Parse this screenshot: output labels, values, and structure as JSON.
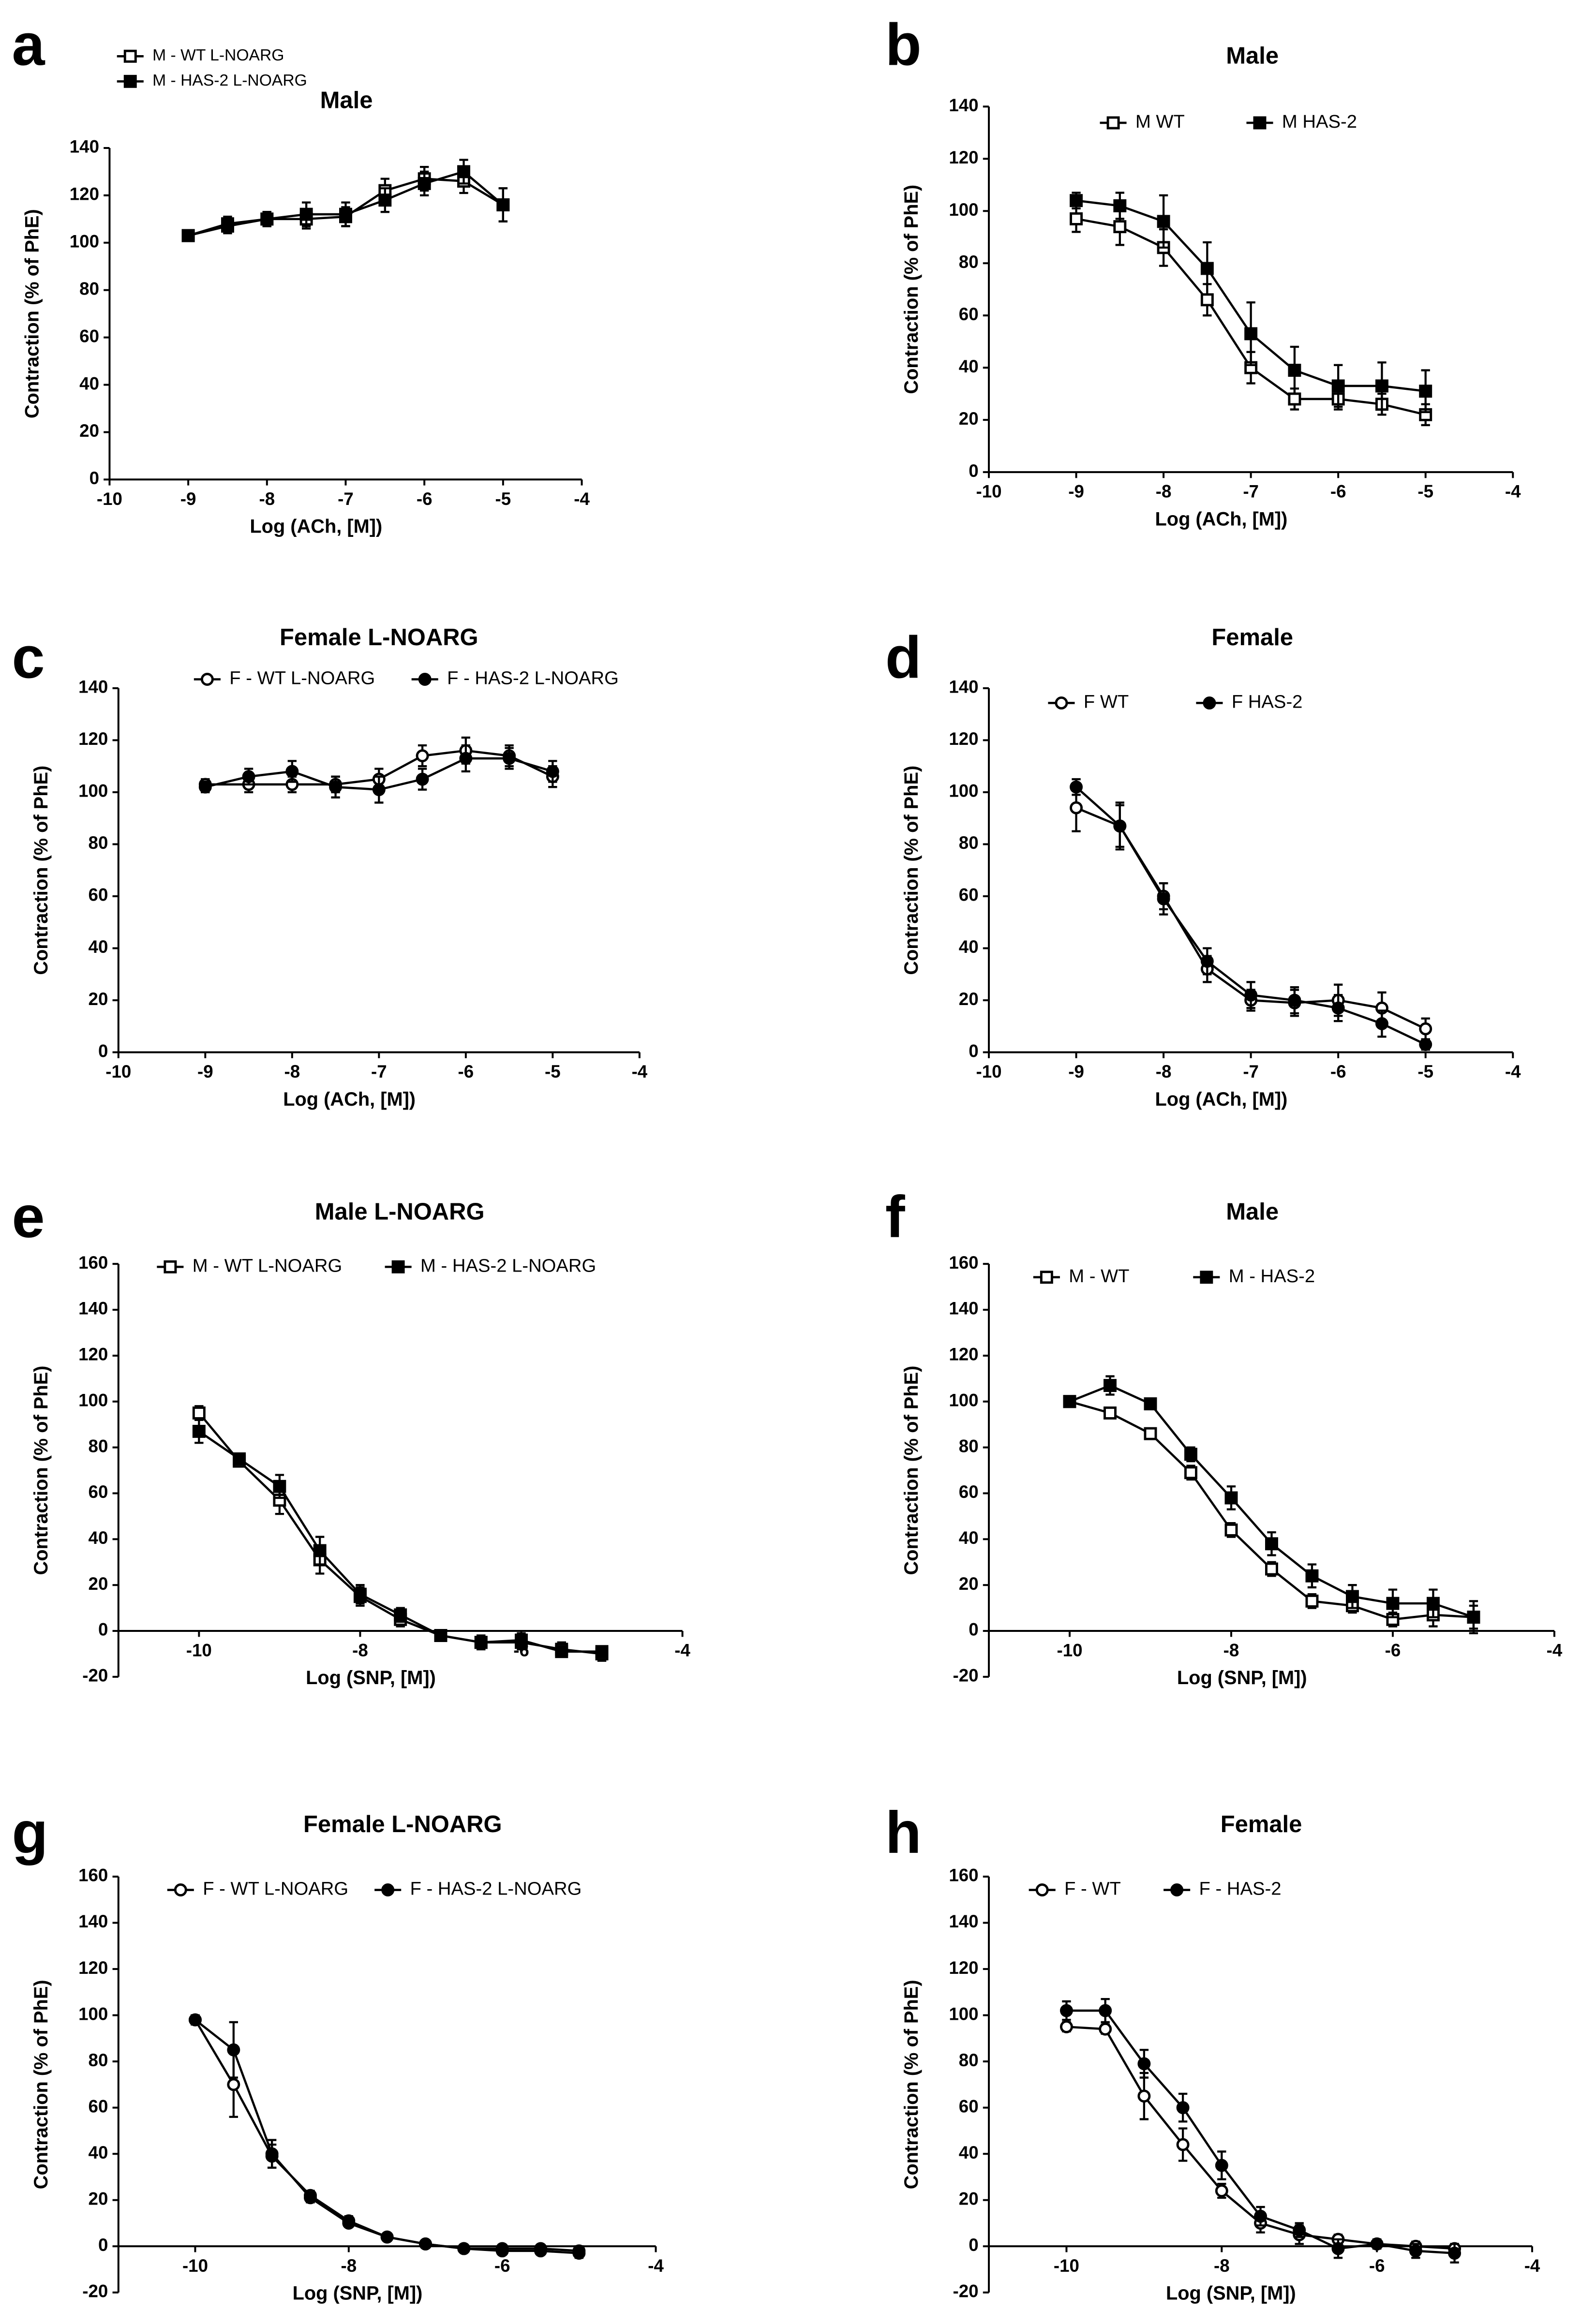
{
  "chart_data": [
    {
      "type": "line",
      "panel": "a",
      "title": "Male",
      "xlabel": "Log (ACh, [M])",
      "ylabel": "Contraction (% of PhE)",
      "x": [
        -9,
        -8.5,
        -8,
        -7.5,
        -7,
        -6.5,
        -6,
        -5.5,
        -5
      ],
      "series": [
        {
          "name": "M - WT L-NOARG",
          "marker": "square",
          "filled": false,
          "color": "#000000",
          "values": [
            103,
            107,
            110,
            110,
            111,
            122,
            127,
            126,
            116
          ],
          "errors": [
            2,
            3,
            3,
            4,
            4,
            5,
            5,
            5,
            7
          ]
        },
        {
          "name": "M - HAS-2 L-NOARG",
          "marker": "square",
          "filled": true,
          "color": "#000000",
          "values": [
            103,
            108,
            110,
            112,
            112,
            118,
            125,
            130,
            116
          ],
          "errors": [
            2,
            3,
            3,
            5,
            5,
            5,
            5,
            5,
            7
          ]
        }
      ],
      "xlim": [
        -10,
        -4
      ],
      "xticks": [
        -10,
        -9,
        -8,
        -7,
        -6,
        -5,
        -4
      ],
      "ylim": [
        0,
        140
      ],
      "yticks": [
        0,
        20,
        40,
        60,
        80,
        100,
        120,
        140
      ]
    },
    {
      "type": "line",
      "panel": "b",
      "title": "Male",
      "xlabel": "Log (ACh, [M])",
      "ylabel": "Contraction (% of PhE)",
      "x": [
        -9,
        -8.5,
        -8,
        -7.5,
        -7,
        -6.5,
        -6,
        -5.5,
        -5
      ],
      "series": [
        {
          "name": "M WT",
          "marker": "square",
          "filled": false,
          "color": "#000000",
          "values": [
            97,
            94,
            86,
            66,
            40,
            28,
            28,
            26,
            22
          ],
          "errors": [
            5,
            7,
            7,
            6,
            6,
            4,
            4,
            4,
            4
          ]
        },
        {
          "name": "M HAS-2",
          "marker": "square",
          "filled": true,
          "color": "#000000",
          "values": [
            104,
            102,
            96,
            78,
            53,
            39,
            33,
            33,
            31
          ],
          "errors": [
            3,
            5,
            10,
            10,
            12,
            9,
            8,
            9,
            8
          ]
        }
      ],
      "xlim": [
        -10,
        -4
      ],
      "xticks": [
        -10,
        -9,
        -8,
        -7,
        -6,
        -5,
        -4
      ],
      "ylim": [
        0,
        140
      ],
      "yticks": [
        0,
        20,
        40,
        60,
        80,
        100,
        120,
        140
      ]
    },
    {
      "type": "line",
      "panel": "c",
      "title": "Female L-NOARG",
      "xlabel": "Log (ACh, [M])",
      "ylabel": "Contraction (% of PhE)",
      "x": [
        -9,
        -8.5,
        -8,
        -7.5,
        -7,
        -6.5,
        -6,
        -5.5,
        -5
      ],
      "series": [
        {
          "name": "F - WT L-NOARG",
          "marker": "circle",
          "filled": false,
          "color": "#000000",
          "values": [
            103,
            103,
            103,
            103,
            105,
            114,
            116,
            114,
            106
          ],
          "errors": [
            2,
            3,
            3,
            3,
            4,
            4,
            5,
            4,
            4
          ]
        },
        {
          "name": "F - HAS-2 L-NOARG",
          "marker": "circle",
          "filled": true,
          "color": "#000000",
          "values": [
            102,
            106,
            108,
            102,
            101,
            105,
            113,
            113,
            108
          ],
          "errors": [
            2,
            3,
            4,
            4,
            5,
            4,
            5,
            4,
            4
          ]
        }
      ],
      "xlim": [
        -10,
        -4
      ],
      "xticks": [
        -10,
        -9,
        -8,
        -7,
        -6,
        -5,
        -4
      ],
      "ylim": [
        0,
        140
      ],
      "yticks": [
        0,
        20,
        40,
        60,
        80,
        100,
        120,
        140
      ]
    },
    {
      "type": "line",
      "panel": "d",
      "title": "Female",
      "xlabel": "Log (ACh, [M])",
      "ylabel": "Contraction (% of PhE)",
      "x": [
        -9,
        -8.5,
        -8,
        -7.5,
        -7,
        -6.5,
        -6,
        -5.5,
        -5
      ],
      "series": [
        {
          "name": "F WT",
          "marker": "circle",
          "filled": false,
          "color": "#000000",
          "values": [
            94,
            87,
            60,
            32,
            20,
            19,
            20,
            17,
            9
          ],
          "errors": [
            9,
            8,
            5,
            5,
            4,
            5,
            6,
            6,
            4
          ]
        },
        {
          "name": "F HAS-2",
          "marker": "circle",
          "filled": true,
          "color": "#000000",
          "values": [
            102,
            87,
            59,
            35,
            22,
            20,
            17,
            11,
            3
          ],
          "errors": [
            3,
            9,
            6,
            5,
            5,
            5,
            5,
            5,
            2
          ]
        }
      ],
      "xlim": [
        -10,
        -4
      ],
      "xticks": [
        -10,
        -9,
        -8,
        -7,
        -6,
        -5,
        -4
      ],
      "ylim": [
        0,
        140
      ],
      "yticks": [
        0,
        20,
        40,
        60,
        80,
        100,
        120,
        140
      ]
    },
    {
      "type": "line",
      "panel": "e",
      "title": "Male L-NOARG",
      "xlabel": "Log (SNP, [M])",
      "ylabel": "Contraction (% of PhE)",
      "x": [
        -10,
        -9.5,
        -9,
        -8.5,
        -8,
        -7.5,
        -7,
        -6.5,
        -6,
        -5.5,
        -5
      ],
      "series": [
        {
          "name": "M - WT L-NOARG",
          "marker": "square",
          "filled": false,
          "color": "#000000",
          "values": [
            95,
            74,
            57,
            31,
            15,
            5,
            -2,
            -5,
            -5,
            -8,
            -10
          ],
          "errors": [
            3,
            2,
            6,
            6,
            4,
            3,
            2,
            3,
            3,
            3,
            3
          ]
        },
        {
          "name": "M - HAS-2 L-NOARG",
          "marker": "square",
          "filled": true,
          "color": "#000000",
          "values": [
            87,
            75,
            63,
            35,
            16,
            7,
            -2,
            -5,
            -4,
            -9,
            -9
          ],
          "errors": [
            5,
            2,
            5,
            6,
            4,
            3,
            2,
            3,
            3,
            2,
            2
          ]
        }
      ],
      "xlim": [
        -11,
        -4
      ],
      "xticks": [
        -10,
        -8,
        -6,
        -4
      ],
      "ylim": [
        -20,
        160
      ],
      "yticks": [
        -20,
        0,
        20,
        40,
        60,
        80,
        100,
        120,
        140,
        160
      ]
    },
    {
      "type": "line",
      "panel": "f",
      "title": "Male",
      "xlabel": "Log (SNP, [M])",
      "ylabel": "Contraction (% of PhE)",
      "x": [
        -10,
        -9.5,
        -9,
        -8.5,
        -8,
        -7.5,
        -7,
        -6.5,
        -6,
        -5.5,
        -5
      ],
      "series": [
        {
          "name": "M - WT",
          "marker": "square",
          "filled": false,
          "color": "#000000",
          "values": [
            100,
            95,
            86,
            69,
            44,
            27,
            13,
            11,
            5,
            7,
            6
          ],
          "errors": [
            1,
            2,
            2,
            3,
            3,
            3,
            3,
            3,
            3,
            5,
            5
          ]
        },
        {
          "name": "M - HAS-2",
          "marker": "square",
          "filled": true,
          "color": "#000000",
          "values": [
            100,
            107,
            99,
            77,
            58,
            38,
            24,
            15,
            12,
            12,
            6
          ],
          "errors": [
            2,
            4,
            1,
            3,
            5,
            5,
            5,
            5,
            6,
            6,
            7
          ]
        }
      ],
      "xlim": [
        -11,
        -4
      ],
      "xticks": [
        -10,
        -8,
        -6,
        -4
      ],
      "ylim": [
        -20,
        160
      ],
      "yticks": [
        -20,
        0,
        20,
        40,
        60,
        80,
        100,
        120,
        140,
        160
      ]
    },
    {
      "type": "line",
      "panel": "g",
      "title": "Female L-NOARG",
      "xlabel": "Log (SNP, [M])",
      "ylabel": "Contraction (% of PhE)",
      "x": [
        -10,
        -9.5,
        -9,
        -8.5,
        -8,
        -7.5,
        -7,
        -6.5,
        -6,
        -5.5,
        -5
      ],
      "series": [
        {
          "name": "F - WT L-NOARG",
          "marker": "circle",
          "filled": false,
          "color": "#000000",
          "values": [
            98,
            70,
            39,
            22,
            11,
            4,
            1,
            -1,
            -2,
            -2,
            -3
          ],
          "errors": [
            2,
            14,
            5,
            2,
            2,
            1,
            1,
            1,
            1,
            1,
            2
          ]
        },
        {
          "name": "F - HAS-2 L-NOARG",
          "marker": "circle",
          "filled": true,
          "color": "#000000",
          "values": [
            98,
            85,
            40,
            21,
            10,
            4,
            1,
            -1,
            -1,
            -1,
            -2
          ],
          "errors": [
            2,
            12,
            6,
            2,
            1,
            1,
            1,
            1,
            1,
            1,
            2
          ]
        }
      ],
      "xlim": [
        -11,
        -4
      ],
      "xticks": [
        -10,
        -8,
        -6,
        -4
      ],
      "ylim": [
        -20,
        160
      ],
      "yticks": [
        -20,
        0,
        20,
        40,
        60,
        80,
        100,
        120,
        140,
        160
      ]
    },
    {
      "type": "line",
      "panel": "h",
      "title": "Female",
      "xlabel": "Log (SNP, [M])",
      "ylabel": "Contraction (% of PhE)",
      "x": [
        -10,
        -9.5,
        -9,
        -8.5,
        -8,
        -7.5,
        -7,
        -6.5,
        -6,
        -5.5,
        -5
      ],
      "series": [
        {
          "name": "F - WT",
          "marker": "circle",
          "filled": false,
          "color": "#000000",
          "values": [
            95,
            94,
            65,
            44,
            24,
            10,
            5,
            3,
            1,
            0,
            -1
          ],
          "errors": [
            2,
            2,
            10,
            7,
            3,
            4,
            4,
            2,
            1,
            2,
            2
          ]
        },
        {
          "name": "F - HAS-2",
          "marker": "circle",
          "filled": true,
          "color": "#000000",
          "values": [
            102,
            102,
            79,
            60,
            35,
            13,
            7,
            -1,
            1,
            -2,
            -3
          ],
          "errors": [
            4,
            5,
            6,
            6,
            6,
            4,
            3,
            4,
            2,
            3,
            4
          ]
        }
      ],
      "xlim": [
        -11,
        -4
      ],
      "xticks": [
        -10,
        -8,
        -6,
        -4
      ],
      "ylim": [
        -20,
        160
      ],
      "yticks": [
        -20,
        0,
        20,
        40,
        60,
        80,
        100,
        120,
        140,
        160
      ]
    }
  ]
}
